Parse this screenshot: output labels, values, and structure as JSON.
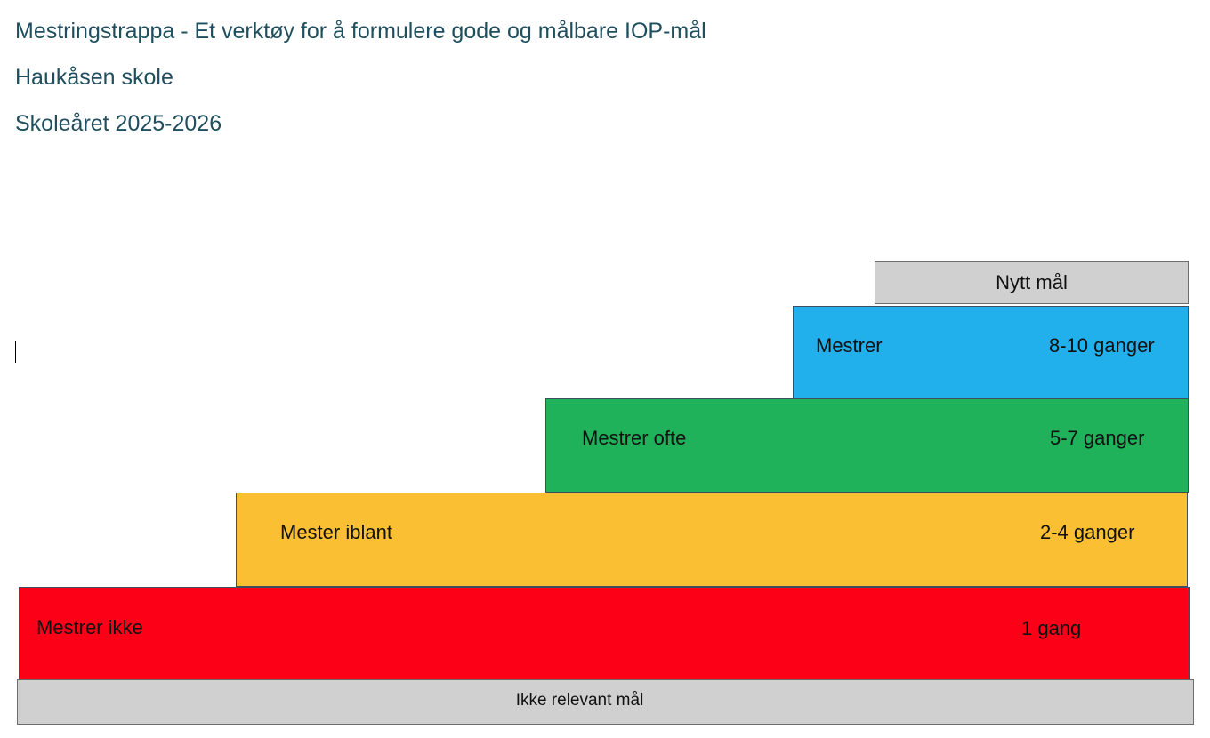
{
  "header": {
    "title": "Mestringstrappa - Et verktøy for å formulere gode og målbare IOP-mål",
    "school": "Haukåsen skole",
    "school_year": "Skoleåret 2025-2026"
  },
  "staircase": {
    "new_goal": {
      "label": "Nytt mål",
      "color": "#d0d0d0"
    },
    "steps": [
      {
        "label": "Mestrer",
        "count": "8-10 ganger",
        "color": "#22b0ec"
      },
      {
        "label": "Mestrer ofte",
        "count": "5-7 ganger",
        "color": "#1fb25a"
      },
      {
        "label": "Mester iblant",
        "count": "2-4 ganger",
        "color": "#fbbf33"
      },
      {
        "label": "Mestrer ikke",
        "count": "1 gang",
        "color": "#fc0018"
      }
    ],
    "irrelevant_goal": {
      "label": "Ikke relevant mål",
      "color": "#d0d0d0"
    }
  }
}
